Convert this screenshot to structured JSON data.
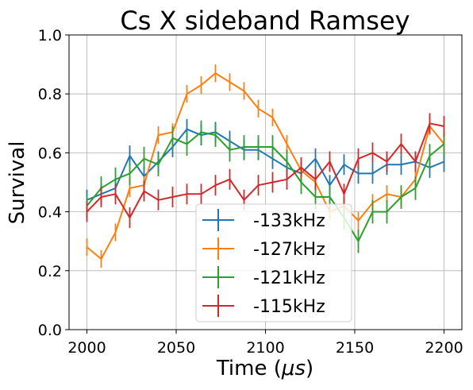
{
  "chart_data": {
    "type": "line",
    "title": "Cs X sideband Ramsey",
    "xlabel_main": "Time (",
    "xlabel_mu": "μ",
    "xlabel_unit": "s",
    "xlabel_close": ")",
    "ylabel": "Survival",
    "xlim": [
      1990,
      2210
    ],
    "ylim": [
      0,
      1.0
    ],
    "xticks": [
      2000,
      2050,
      2100,
      2150,
      2200
    ],
    "xtick_labels": [
      "2000",
      "2050",
      "2100",
      "2150",
      "2200"
    ],
    "yticks": [
      0.0,
      0.2,
      0.4,
      0.6,
      0.8,
      1.0
    ],
    "ytick_labels": [
      "0.0",
      "0.2",
      "0.4",
      "0.6",
      "0.8",
      "1.0"
    ],
    "grid": true,
    "legend_position": "lower-center",
    "x": [
      2000,
      2008,
      2016,
      2024,
      2032,
      2040,
      2048,
      2056,
      2064,
      2072,
      2080,
      2088,
      2096,
      2104,
      2112,
      2120,
      2128,
      2136,
      2144,
      2152,
      2160,
      2168,
      2176,
      2184,
      2192,
      2200
    ],
    "series": [
      {
        "name": "-133kHz",
        "color": "#1f77b4",
        "values": [
          0.44,
          0.46,
          0.48,
          0.59,
          0.52,
          0.57,
          0.62,
          0.68,
          0.66,
          0.67,
          0.64,
          0.61,
          0.61,
          0.58,
          0.55,
          0.53,
          0.58,
          0.49,
          0.56,
          0.53,
          0.53,
          0.56,
          0.56,
          0.57,
          0.55,
          0.57
        ],
        "errors": [
          0.035,
          0.035,
          0.035,
          0.035,
          0.035,
          0.035,
          0.035,
          0.035,
          0.035,
          0.035,
          0.035,
          0.035,
          0.035,
          0.035,
          0.035,
          0.035,
          0.035,
          0.035,
          0.035,
          0.035,
          0.035,
          0.035,
          0.035,
          0.035,
          0.035,
          0.035
        ]
      },
      {
        "name": "-127kHz",
        "color": "#ff7f0e",
        "values": [
          0.28,
          0.24,
          0.33,
          0.48,
          0.49,
          0.66,
          0.67,
          0.8,
          0.83,
          0.87,
          0.84,
          0.81,
          0.75,
          0.72,
          0.63,
          0.54,
          0.5,
          0.4,
          0.42,
          0.37,
          0.43,
          0.46,
          0.45,
          0.51,
          0.69,
          0.63
        ],
        "errors": [
          0.03,
          0.03,
          0.03,
          0.03,
          0.03,
          0.03,
          0.03,
          0.03,
          0.03,
          0.03,
          0.03,
          0.03,
          0.03,
          0.03,
          0.03,
          0.03,
          0.03,
          0.03,
          0.03,
          0.03,
          0.03,
          0.03,
          0.03,
          0.03,
          0.03,
          0.03
        ]
      },
      {
        "name": "-121kHz",
        "color": "#2ca02c",
        "values": [
          0.42,
          0.48,
          0.51,
          0.53,
          0.58,
          0.56,
          0.65,
          0.63,
          0.67,
          0.66,
          0.61,
          0.62,
          0.62,
          0.62,
          0.57,
          0.5,
          0.45,
          0.45,
          0.38,
          0.3,
          0.4,
          0.4,
          0.45,
          0.48,
          0.59,
          0.63
        ],
        "errors": [
          0.04,
          0.04,
          0.04,
          0.04,
          0.04,
          0.04,
          0.04,
          0.04,
          0.04,
          0.04,
          0.04,
          0.04,
          0.04,
          0.04,
          0.04,
          0.04,
          0.04,
          0.04,
          0.04,
          0.04,
          0.04,
          0.04,
          0.04,
          0.04,
          0.04,
          0.04
        ]
      },
      {
        "name": "-115kHz",
        "color": "#d62728",
        "values": [
          0.4,
          0.45,
          0.46,
          0.38,
          0.47,
          0.44,
          0.45,
          0.46,
          0.46,
          0.49,
          0.51,
          0.44,
          0.49,
          0.5,
          0.51,
          0.55,
          0.51,
          0.57,
          0.46,
          0.58,
          0.6,
          0.57,
          0.63,
          0.57,
          0.7,
          0.69
        ],
        "errors": [
          0.035,
          0.035,
          0.035,
          0.035,
          0.035,
          0.035,
          0.035,
          0.035,
          0.035,
          0.035,
          0.035,
          0.035,
          0.035,
          0.035,
          0.035,
          0.035,
          0.035,
          0.035,
          0.035,
          0.035,
          0.035,
          0.035,
          0.035,
          0.035,
          0.035,
          0.035
        ]
      }
    ]
  }
}
